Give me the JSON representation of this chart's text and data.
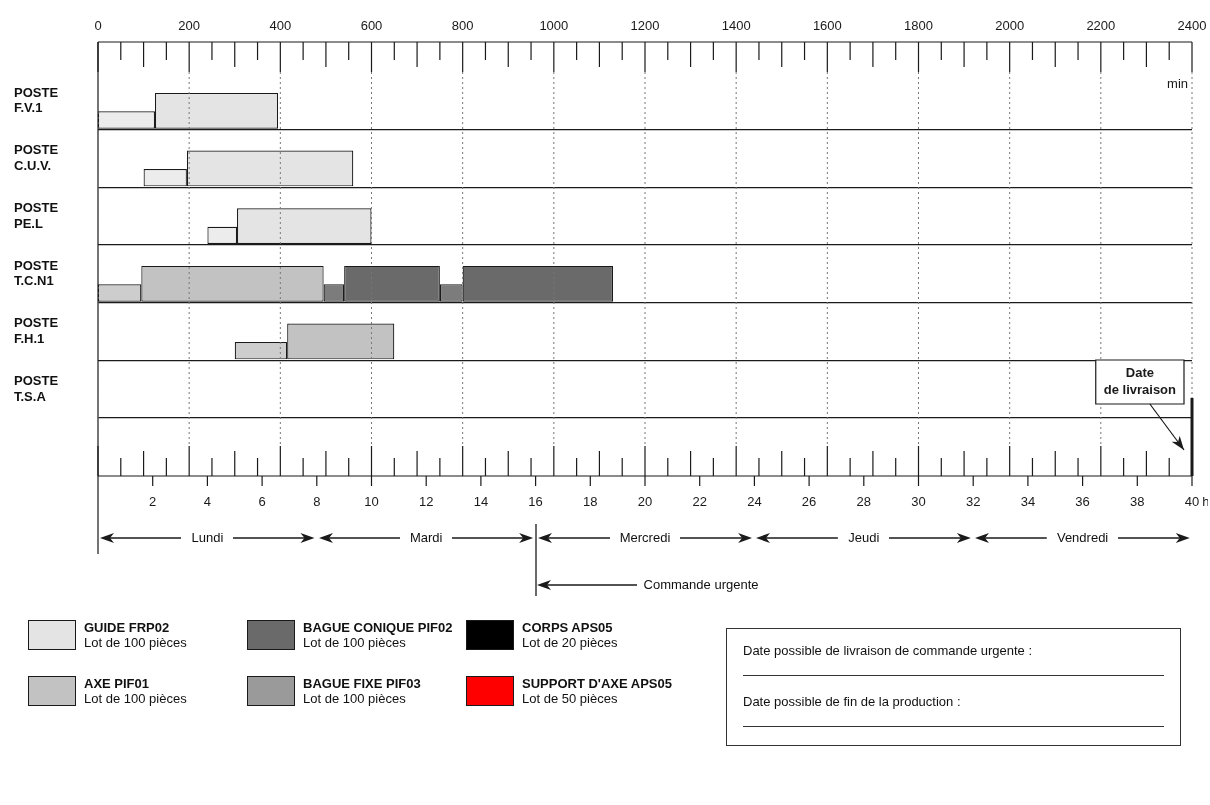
{
  "chart_data": {
    "type": "bar",
    "orientation": "horizontal",
    "legend": "bottom",
    "grid": true,
    "categories": [
      "POSTE F.V.1",
      "POSTE C.U.V.",
      "POSTE PE.L",
      "POSTE T.C.N1",
      "POSTE F.H.1",
      "POSTE T.S.A"
    ],
    "xlim": [
      0,
      40
    ],
    "xlabel": "h",
    "xticks": [
      2,
      4,
      6,
      8,
      10,
      12,
      14,
      16,
      18,
      20,
      22,
      24,
      26,
      28,
      30,
      32,
      34,
      36,
      38,
      40
    ],
    "x2lim": [
      0,
      2400
    ],
    "x2label": "min",
    "x2ticks": [
      0,
      200,
      400,
      600,
      800,
      1000,
      1200,
      1400,
      1600,
      1800,
      2000,
      2200,
      2400
    ],
    "series": [
      {
        "axis": "x2",
        "color": "#ececec",
        "base": [
          0,
          100,
          240,
          null,
          null,
          null
        ],
        "values": [
          125,
          95,
          65,
          null,
          null,
          null
        ]
      },
      {
        "name": "GUIDE FRP02",
        "axis": "x2",
        "color": "#e4e4e4",
        "base": [
          125,
          195,
          305,
          null,
          null,
          null
        ],
        "values": [
          270,
          365,
          295,
          null,
          null,
          null
        ]
      },
      {
        "axis": "x2",
        "color": "#7c7c7c",
        "base": [
          null,
          null,
          null,
          495,
          null,
          null
        ],
        "values": [
          null,
          null,
          null,
          45,
          null,
          null
        ]
      },
      {
        "axis": "x2",
        "color": "#7c7c7c",
        "base": [
          null,
          null,
          null,
          750,
          null,
          null
        ],
        "values": [
          null,
          null,
          null,
          50,
          null,
          null
        ]
      },
      {
        "name": "BAGUE CONIQUE PIF02",
        "axis": "x2",
        "color": "#6a6a6a",
        "base": [
          null,
          null,
          null,
          540,
          null,
          null
        ],
        "values": [
          null,
          null,
          null,
          210,
          null,
          null
        ]
      },
      {
        "axis": "x2",
        "color": "#6a6a6a",
        "base": [
          null,
          null,
          null,
          800,
          null,
          null
        ],
        "values": [
          null,
          null,
          null,
          330,
          null,
          null
        ]
      },
      {
        "name": "CORPS APS05",
        "axis": "x2",
        "color": "#000000",
        "values": [
          null,
          null,
          null,
          null,
          null,
          null
        ]
      },
      {
        "axis": "x2",
        "color": "#cdcdcd",
        "base": [
          null,
          null,
          null,
          0,
          300,
          null
        ],
        "values": [
          null,
          null,
          null,
          95,
          115,
          null
        ]
      },
      {
        "name": "AXE PIF01",
        "axis": "x2",
        "color": "#c2c2c2",
        "base": [
          null,
          null,
          null,
          95,
          415,
          null
        ],
        "values": [
          null,
          null,
          null,
          400,
          235,
          null
        ]
      },
      {
        "name": "BAGUE FIXE PIF03",
        "axis": "x2",
        "color": "#9a9a9a",
        "values": [
          null,
          null,
          null,
          null,
          null,
          null
        ]
      },
      {
        "name": "SUPPORT D'AXE APS05",
        "axis": "x2",
        "color": "#ff0000",
        "values": [
          null,
          null,
          null,
          null,
          null,
          null
        ]
      }
    ],
    "ref_lines": [
      {
        "axis": "x2",
        "value": 2400,
        "label": "Date de livraison"
      }
    ],
    "annotations": [
      "Lundi",
      "Mardi",
      "Mercredi",
      "Jeudi",
      "Vendredi",
      "Commande urgente",
      "Date possible de livraison de commande urgente :",
      "Date possible de fin de la production :",
      "Lot de 100 pièces",
      "Lot de 100 pièces",
      "Lot de 20 pièces",
      "Lot de 100 pièces",
      "Lot de 100 pièces",
      "Lot de 50 pièces"
    ]
  }
}
